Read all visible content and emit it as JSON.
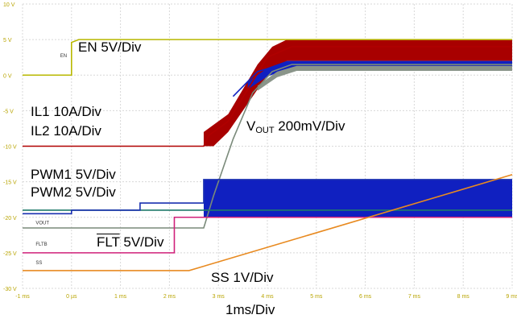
{
  "chart_data": {
    "type": "line",
    "title": "",
    "xlabel": "1ms/Div",
    "ylabel": "",
    "xlim": [
      -1,
      9
    ],
    "ylim": [
      -30,
      10
    ],
    "x_ticks": [
      "-1 ms",
      "0 µs",
      "1 ms",
      "2 ms",
      "3 ms",
      "4 ms",
      "5 ms",
      "6 ms",
      "7 ms",
      "8 ms",
      "9 ms"
    ],
    "y_ticks": [
      "10 V",
      "5 V",
      "0 V",
      "-5 V",
      "-10 V",
      "-15 V",
      "-20 V",
      "-25 V",
      "-30 V"
    ],
    "grid": true,
    "series": [
      {
        "name": "EN 5V/Div",
        "color": "#b8b800",
        "points": [
          [
            -1,
            0
          ],
          [
            0,
            0
          ],
          [
            0,
            4.6
          ],
          [
            0.15,
            5
          ],
          [
            9,
            5
          ]
        ]
      },
      {
        "name": "IL1 10A/Div",
        "color": "#b00000",
        "points": [
          [
            -1,
            -10
          ],
          [
            2.7,
            -10
          ],
          [
            2.8,
            -8.5
          ],
          [
            3.2,
            -6.5
          ],
          [
            3.6,
            -2
          ],
          [
            4.0,
            2.5
          ],
          [
            4.5,
            4
          ],
          [
            9,
            4
          ]
        ]
      },
      {
        "name": "IL2 10A/Div",
        "color": "#1020c0",
        "points": [
          [
            3.3,
            -3
          ],
          [
            3.8,
            0.5
          ],
          [
            4.3,
            1.5
          ],
          [
            9,
            1.5
          ]
        ]
      },
      {
        "name": "VOUT 200mV/Div",
        "color": "#7a8a7a",
        "points": [
          [
            -1,
            -21.5
          ],
          [
            2.7,
            -21.5
          ],
          [
            2.9,
            -17
          ],
          [
            3.3,
            -9
          ],
          [
            3.7,
            -2.5
          ],
          [
            4.1,
            0.5
          ],
          [
            4.5,
            1.5
          ],
          [
            9,
            1.5
          ]
        ]
      },
      {
        "name": "PWM1 5V/Div",
        "color": "#1f7a6a",
        "points": [
          [
            -1,
            -19
          ],
          [
            9,
            -19
          ]
        ]
      },
      {
        "name": "PWM2 5V/Div",
        "color": "#1a30b0",
        "points": [
          [
            -1,
            -19.5
          ],
          [
            0,
            -19.5
          ],
          [
            0,
            -19
          ],
          [
            1.4,
            -19
          ],
          [
            1.4,
            -18
          ],
          [
            2.7,
            -18
          ],
          [
            2.7,
            -14.7
          ],
          [
            9,
            -14.7
          ]
        ]
      },
      {
        "name": "FLT 5V/Div",
        "color": "#d0207a",
        "points": [
          [
            -1,
            -25
          ],
          [
            2.1,
            -25
          ],
          [
            2.1,
            -20
          ],
          [
            9,
            -20
          ]
        ]
      },
      {
        "name": "SS 1V/Div",
        "color": "#e88a20",
        "points": [
          [
            -1,
            -27.5
          ],
          [
            2.4,
            -27.5
          ],
          [
            9,
            -14
          ]
        ]
      }
    ],
    "annotations": {
      "en": "EN 5V/Div",
      "il1": "IL1 10A/Div",
      "il2": "IL2 10A/Div",
      "vout_main": "V",
      "vout_sub": "OUT",
      "vout_rest": " 200mV/Div",
      "pwm1": "PWM1 5V/Div",
      "pwm2": "PWM2 5V/Div",
      "flt_bar": "FLT",
      "flt_rest": " 5V/Div",
      "ss": "SS 1V/Div",
      "timebase": "1ms/Div"
    },
    "trace_tags": [
      "EN",
      "VOUT",
      "FLTB",
      "SS"
    ]
  },
  "colors": {
    "grid": "#d8d8d8",
    "axis_text": "#b8a400",
    "burst_red": "#a80000",
    "burst_blue": "#1020c0",
    "burst_grey": "#8a958a"
  }
}
